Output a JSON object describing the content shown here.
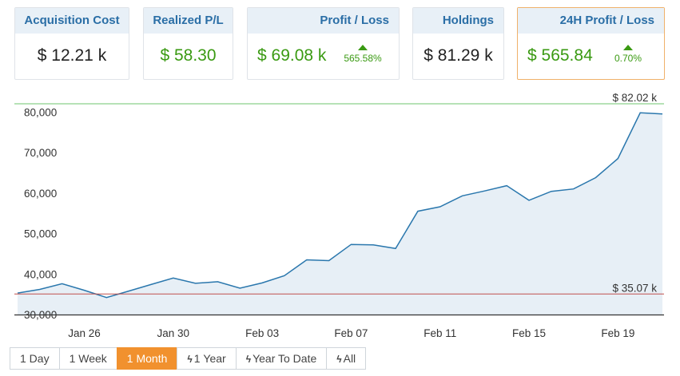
{
  "cards": {
    "acquisition": {
      "title": "Acquisition Cost",
      "value": "$ 12.21 k"
    },
    "realized": {
      "title": "Realized P/L",
      "value": "$ 58.30"
    },
    "profit": {
      "title": "Profit / Loss",
      "value": "$ 69.08 k",
      "change": "565.58%"
    },
    "holdings": {
      "title": "Holdings",
      "value": "$ 81.29 k"
    },
    "profit24h": {
      "title": "24H Profit / Loss",
      "value": "$ 565.84",
      "change": "0.70%"
    }
  },
  "colors": {
    "accent": "#f1912e",
    "up": "#3a9a12",
    "line": "#2a77ad",
    "area": "#e7eff6",
    "high": "#6ec46e",
    "low": "#c0504d"
  },
  "tabs": [
    {
      "label": "1 Day",
      "icon": null
    },
    {
      "label": "1 Week",
      "icon": null
    },
    {
      "label": "1 Month",
      "icon": null,
      "active": true
    },
    {
      "label": "1 Year",
      "icon": "bolt-icon"
    },
    {
      "label": "Year To Date",
      "icon": "bolt-icon"
    },
    {
      "label": "All",
      "icon": "bolt-icon"
    }
  ],
  "chart_data": {
    "type": "area",
    "ylim": [
      30000,
      82020
    ],
    "yticks": [
      "30,000",
      "40,000",
      "50,000",
      "60,000",
      "70,000",
      "80,000"
    ],
    "yticks_values": [
      30000,
      40000,
      50000,
      60000,
      70000,
      80000
    ],
    "xticks": [
      "Jan 26",
      "Jan 30",
      "Feb 03",
      "Feb 07",
      "Feb 11",
      "Feb 15",
      "Feb 19"
    ],
    "high_label": "$ 82.02 k",
    "low_label": "$ 35.07 k",
    "high_value": 82020,
    "low_value": 35070,
    "grid": false,
    "x_start": "2018-01-23",
    "x_end": "2018-02-21",
    "dates": [
      "2018-01-23",
      "2018-01-24",
      "2018-01-25",
      "2018-01-26",
      "2018-01-27",
      "2018-01-28",
      "2018-01-29",
      "2018-01-30",
      "2018-01-31",
      "2018-02-01",
      "2018-02-02",
      "2018-02-03",
      "2018-02-04",
      "2018-02-05",
      "2018-02-06",
      "2018-02-07",
      "2018-02-08",
      "2018-02-09",
      "2018-02-10",
      "2018-02-11",
      "2018-02-12",
      "2018-02-13",
      "2018-02-14",
      "2018-02-15",
      "2018-02-16",
      "2018-02-17",
      "2018-02-18",
      "2018-02-19",
      "2018-02-20",
      "2018-02-21"
    ],
    "values": [
      35300,
      36200,
      37600,
      36000,
      34200,
      35800,
      37400,
      39000,
      37700,
      38100,
      36500,
      37800,
      39600,
      43500,
      43300,
      47300,
      47200,
      46300,
      55500,
      56600,
      59300,
      60500,
      61800,
      58200,
      60400,
      61000,
      63800,
      68500,
      79800,
      79500
    ]
  }
}
